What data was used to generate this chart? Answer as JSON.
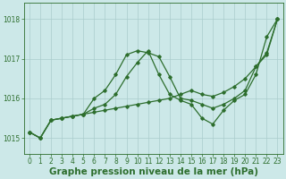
{
  "background_color": "#cce8e8",
  "grid_color": "#aacccc",
  "line_color": "#2d6e2d",
  "marker_color": "#2d6e2d",
  "title": "Graphe pression niveau de la mer (hPa)",
  "title_fontsize": 7.5,
  "tick_fontsize": 5.5,
  "xlim": [
    -0.5,
    23.5
  ],
  "ylim": [
    1014.6,
    1018.4
  ],
  "yticks": [
    1015,
    1016,
    1017,
    1018
  ],
  "xticks": [
    0,
    1,
    2,
    3,
    4,
    5,
    6,
    7,
    8,
    9,
    10,
    11,
    12,
    13,
    14,
    15,
    16,
    17,
    18,
    19,
    20,
    21,
    22,
    23
  ],
  "series1_x": [
    0,
    1,
    2,
    3,
    4,
    5,
    6,
    7,
    8,
    9,
    10,
    11,
    12,
    13,
    14,
    15,
    16,
    17,
    18,
    19,
    20,
    21,
    22,
    23
  ],
  "series1_y": [
    1015.15,
    1015.0,
    1015.45,
    1015.5,
    1015.55,
    1015.6,
    1015.65,
    1015.7,
    1015.75,
    1015.8,
    1015.85,
    1015.9,
    1015.95,
    1016.0,
    1016.1,
    1016.2,
    1016.1,
    1016.05,
    1016.15,
    1016.3,
    1016.5,
    1016.8,
    1017.1,
    1018.0
  ],
  "series2_x": [
    0,
    1,
    2,
    3,
    4,
    5,
    6,
    7,
    8,
    9,
    10,
    11,
    12,
    13,
    14,
    15,
    16,
    17,
    18,
    19,
    20,
    21,
    22,
    23
  ],
  "series2_y": [
    1015.15,
    1015.0,
    1015.45,
    1015.5,
    1015.55,
    1015.6,
    1015.75,
    1015.85,
    1016.1,
    1016.55,
    1016.9,
    1017.2,
    1016.6,
    1016.1,
    1015.95,
    1015.85,
    1015.5,
    1015.35,
    1015.7,
    1015.95,
    1016.1,
    1016.6,
    1017.55,
    1018.0
  ],
  "series3_x": [
    0,
    1,
    2,
    3,
    4,
    5,
    6,
    7,
    8,
    9,
    10,
    11,
    12,
    13,
    14,
    15,
    16,
    17,
    18,
    19,
    20,
    21,
    22,
    23
  ],
  "series3_y": [
    1015.15,
    1015.0,
    1015.45,
    1015.5,
    1015.55,
    1015.6,
    1016.0,
    1016.2,
    1016.6,
    1017.1,
    1017.2,
    1017.15,
    1017.05,
    1016.55,
    1016.0,
    1015.95,
    1015.85,
    1015.75,
    1015.85,
    1016.0,
    1016.2,
    1016.8,
    1017.15,
    1018.0
  ]
}
